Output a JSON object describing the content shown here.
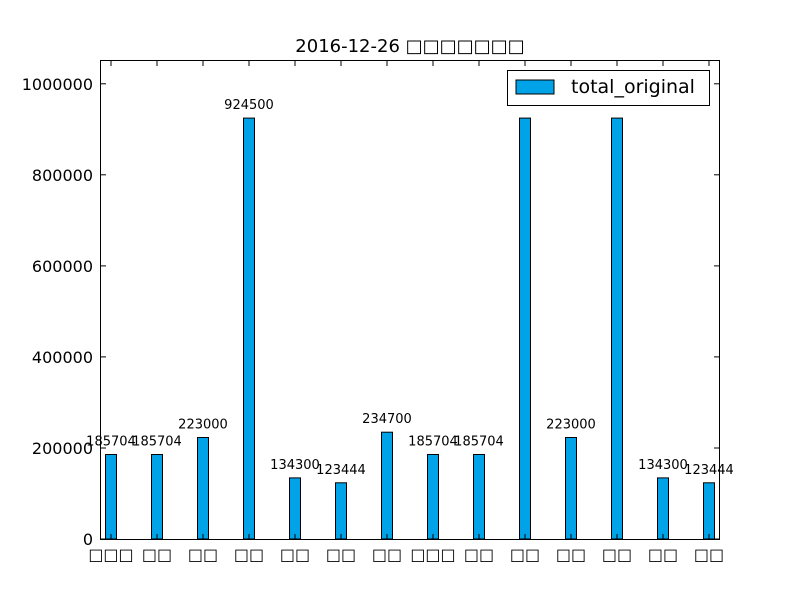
{
  "chart_data": {
    "type": "bar",
    "title": "2016-12-26 □□□□□□□",
    "xlabel": "",
    "ylabel": "",
    "categories": [
      "□□□",
      "□□",
      "□□",
      "□□",
      "□□",
      "□□",
      "□□",
      "□□□",
      "□□",
      "□□",
      "□□",
      "□□",
      "□□",
      "□□"
    ],
    "series": [
      {
        "name": "total_original",
        "color": "#00a2e8",
        "values": [
          185704,
          185704,
          223000,
          924500,
          134300,
          123444,
          234700,
          185704,
          185704,
          924500,
          223000,
          924500,
          134300,
          123444
        ],
        "labels": [
          "185704",
          "185704",
          "223000",
          "924500",
          "134300",
          "123444",
          "234700",
          "185704",
          "185704",
          "",
          "223000",
          "",
          "134300",
          "123444"
        ]
      }
    ],
    "ylim": [
      0,
      1050000
    ],
    "yticks": [
      0,
      200000,
      400000,
      600000,
      800000,
      1000000
    ],
    "ytick_labels": [
      "0",
      "200000",
      "400000",
      "600000",
      "800000",
      "1000000"
    ],
    "grid": false,
    "legend": {
      "position": "top-right"
    }
  }
}
